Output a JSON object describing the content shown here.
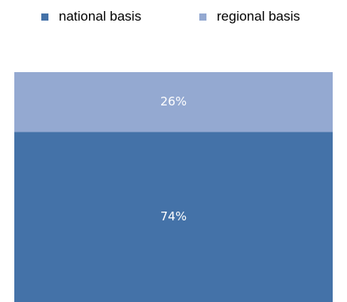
{
  "chart_data": {
    "type": "bar",
    "stacked": true,
    "orientation": "vertical",
    "categories": [
      ""
    ],
    "series": [
      {
        "name": "national basis",
        "values": [
          74
        ],
        "label": "74%",
        "color": "#4472a8"
      },
      {
        "name": "regional basis",
        "values": [
          26
        ],
        "label": "26%",
        "color": "#94a9d1"
      }
    ],
    "ylim": [
      0,
      100
    ],
    "grid": false,
    "legend": "top"
  }
}
